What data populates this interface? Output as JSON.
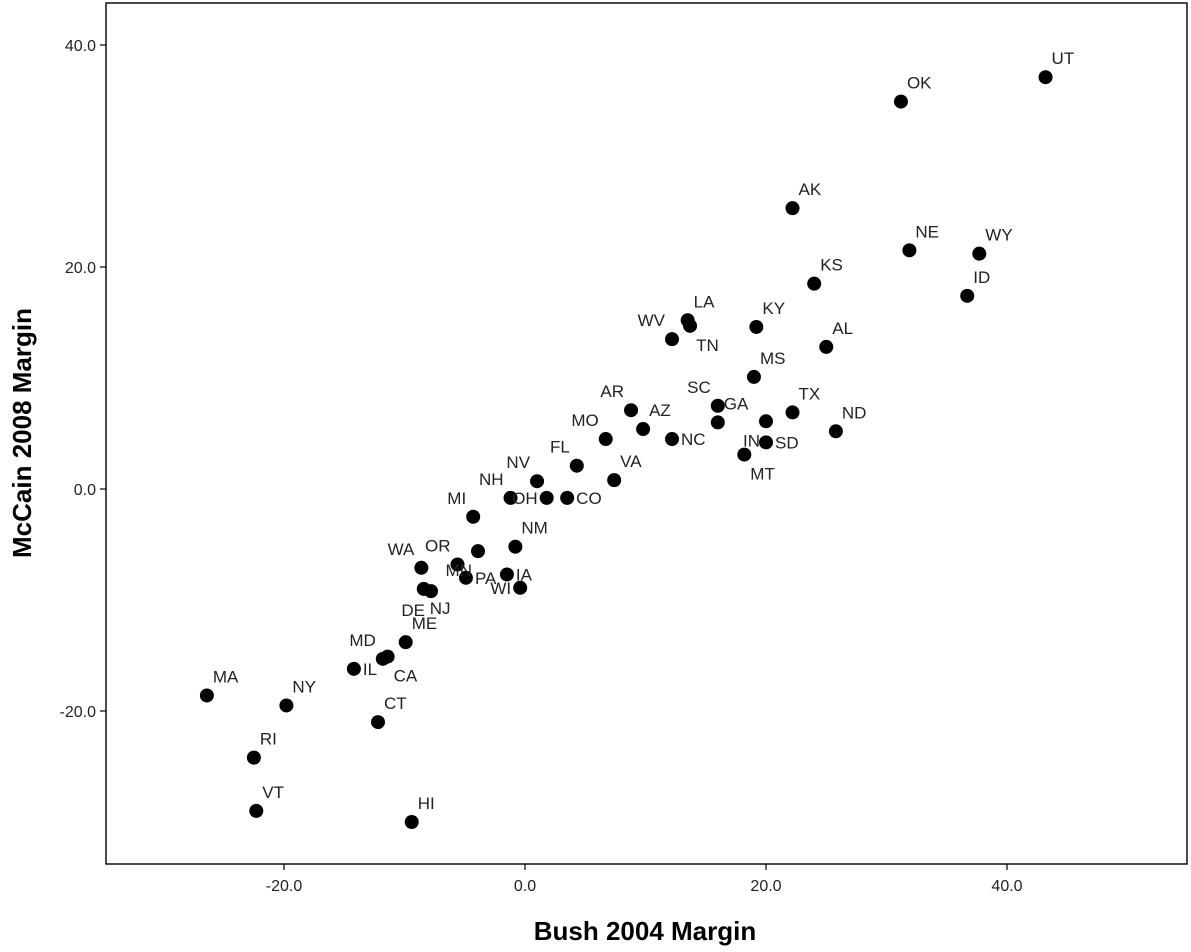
{
  "chart_data": {
    "type": "scatter",
    "title": "",
    "xlabel": "Bush 2004 Margin",
    "ylabel": "McCain 2008 Margin",
    "xlim": [
      -34,
      52
    ],
    "ylim": [
      -34,
      44
    ],
    "x_ticks": [
      -20,
      0,
      20,
      40
    ],
    "y_ticks": [
      -20,
      0,
      20,
      40
    ],
    "x_tick_labels": [
      "-20.0",
      "0.0",
      "20.0",
      "40.0"
    ],
    "y_tick_labels": [
      "-20.0",
      "0.0",
      "20.0",
      "40.0"
    ],
    "grid": false,
    "legend": "none",
    "marker_color": "#000000",
    "points": [
      {
        "label": "UT",
        "x": 43.2,
        "y": 37.1,
        "label_pos": "above-right"
      },
      {
        "label": "OK",
        "x": 31.2,
        "y": 34.9,
        "label_pos": "above-right"
      },
      {
        "label": "AK",
        "x": 22.2,
        "y": 25.3,
        "label_pos": "above-right"
      },
      {
        "label": "NE",
        "x": 31.9,
        "y": 21.5,
        "label_pos": "above-right"
      },
      {
        "label": "WY",
        "x": 37.7,
        "y": 21.2,
        "label_pos": "above-right"
      },
      {
        "label": "KS",
        "x": 24.0,
        "y": 18.5,
        "label_pos": "above-right"
      },
      {
        "label": "ID",
        "x": 36.7,
        "y": 17.4,
        "label_pos": "above-right"
      },
      {
        "label": "LA",
        "x": 13.5,
        "y": 15.2,
        "label_pos": "above-right"
      },
      {
        "label": "KY",
        "x": 19.2,
        "y": 14.6,
        "label_pos": "above-right"
      },
      {
        "label": "TN",
        "x": 13.7,
        "y": 14.7,
        "label_pos": "below-right"
      },
      {
        "label": "WV",
        "x": 12.2,
        "y": 13.5,
        "label_pos": "above-left"
      },
      {
        "label": "AL",
        "x": 25.0,
        "y": 12.8,
        "label_pos": "above-right"
      },
      {
        "label": "MS",
        "x": 19.0,
        "y": 10.1,
        "label_pos": "above-right"
      },
      {
        "label": "AR",
        "x": 8.8,
        "y": 7.1,
        "label_pos": "above-left"
      },
      {
        "label": "SC",
        "x": 16.0,
        "y": 7.5,
        "label_pos": "above-left"
      },
      {
        "label": "GA",
        "x": 16.0,
        "y": 6.0,
        "label_pos": "above-right"
      },
      {
        "label": "TX",
        "x": 22.2,
        "y": 6.9,
        "label_pos": "above-right"
      },
      {
        "label": "IN",
        "x": 20.0,
        "y": 6.1,
        "label_pos": "below-left"
      },
      {
        "label": "AZ",
        "x": 9.8,
        "y": 5.4,
        "label_pos": "above-right"
      },
      {
        "label": "ND",
        "x": 25.8,
        "y": 5.2,
        "label_pos": "above-right"
      },
      {
        "label": "NC",
        "x": 12.2,
        "y": 4.5,
        "label_pos": "right"
      },
      {
        "label": "MO",
        "x": 6.7,
        "y": 4.5,
        "label_pos": "above-left"
      },
      {
        "label": "SD",
        "x": 20.0,
        "y": 4.2,
        "label_pos": "right"
      },
      {
        "label": "MT",
        "x": 18.2,
        "y": 3.1,
        "label_pos": "below-right"
      },
      {
        "label": "FL",
        "x": 4.3,
        "y": 2.1,
        "label_pos": "above-left"
      },
      {
        "label": "VA",
        "x": 7.4,
        "y": 0.8,
        "label_pos": "above-right"
      },
      {
        "label": "NV",
        "x": 1.0,
        "y": 0.7,
        "label_pos": "above-left"
      },
      {
        "label": "NH",
        "x": -1.2,
        "y": -0.8,
        "label_pos": "above-left"
      },
      {
        "label": "OH",
        "x": 1.8,
        "y": -0.8,
        "label_pos": "left"
      },
      {
        "label": "CO",
        "x": 3.5,
        "y": -0.8,
        "label_pos": "right"
      },
      {
        "label": "MI",
        "x": -4.3,
        "y": -2.5,
        "label_pos": "above-left"
      },
      {
        "label": "WA",
        "x": -8.6,
        "y": -7.1,
        "label_pos": "above-left"
      },
      {
        "label": "OR",
        "x": -5.6,
        "y": -6.8,
        "label_pos": "above-left"
      },
      {
        "label": "NM",
        "x": -0.8,
        "y": -5.2,
        "label_pos": "above-right"
      },
      {
        "label": "IA",
        "x": -1.5,
        "y": -7.7,
        "label_pos": "right"
      },
      {
        "label": "PA",
        "x": -4.9,
        "y": -8.0,
        "label_pos": "right"
      },
      {
        "label": "MN",
        "x": -3.9,
        "y": -5.6,
        "label_pos": "below-left"
      },
      {
        "label": "WI",
        "x": -0.4,
        "y": -8.9,
        "label_pos": "left"
      },
      {
        "label": "DE",
        "x": -7.8,
        "y": -9.2,
        "label_pos": "below-left"
      },
      {
        "label": "NJ",
        "x": -8.4,
        "y": -9.0,
        "label_pos": "below-right"
      },
      {
        "label": "ME",
        "x": -9.9,
        "y": -13.8,
        "label_pos": "above-right"
      },
      {
        "label": "CA",
        "x": -11.4,
        "y": -15.1,
        "label_pos": "below-right"
      },
      {
        "label": "MD",
        "x": -11.8,
        "y": -15.3,
        "label_pos": "above-left"
      },
      {
        "label": "IL",
        "x": -14.2,
        "y": -16.2,
        "label_pos": "right"
      },
      {
        "label": "CT",
        "x": -12.2,
        "y": -21.0,
        "label_pos": "above-right"
      },
      {
        "label": "MA",
        "x": -26.4,
        "y": -18.6,
        "label_pos": "above-right"
      },
      {
        "label": "NY",
        "x": -19.8,
        "y": -19.5,
        "label_pos": "above-right"
      },
      {
        "label": "RI",
        "x": -22.5,
        "y": -24.2,
        "label_pos": "above-right"
      },
      {
        "label": "VT",
        "x": -22.3,
        "y": -29.0,
        "label_pos": "above-right"
      },
      {
        "label": "HI",
        "x": -9.4,
        "y": -30.0,
        "label_pos": "above-right"
      }
    ]
  }
}
